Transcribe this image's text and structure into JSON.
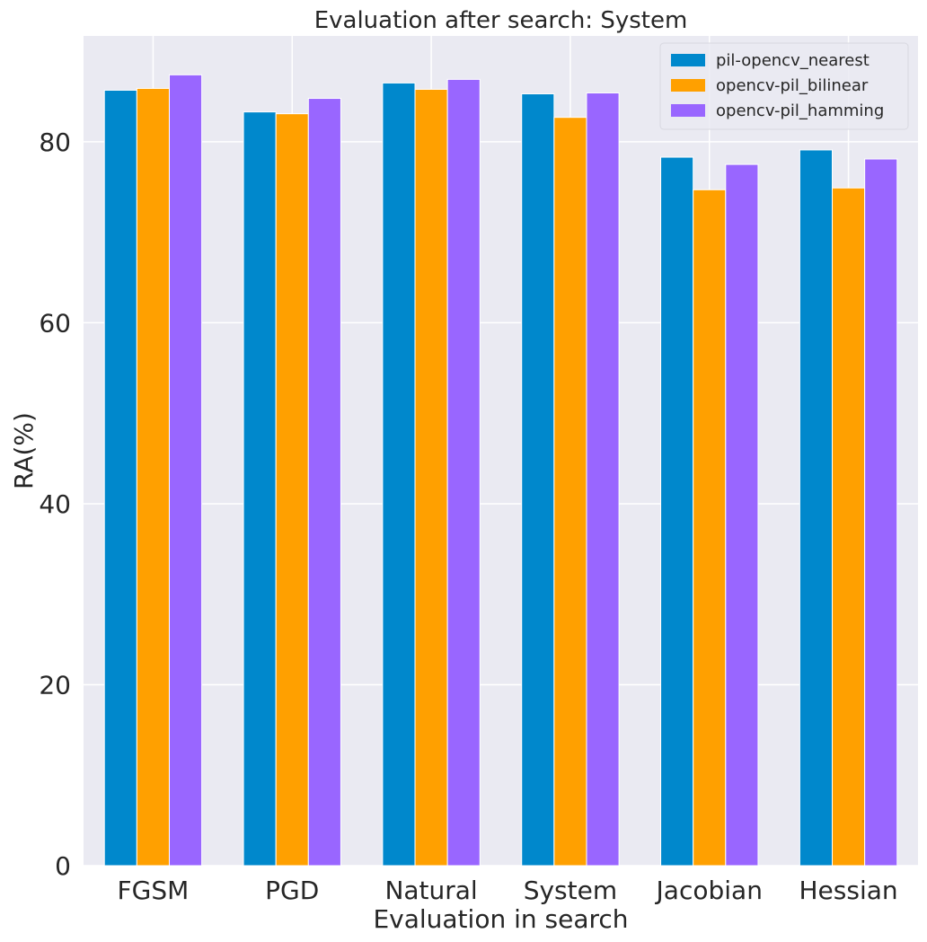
{
  "chart_data": {
    "type": "bar",
    "title": "Evaluation after search: System",
    "xlabel": "Evaluation in search",
    "ylabel": "RA(%)",
    "categories": [
      "FGSM",
      "PGD",
      "Natural",
      "System",
      "Jacobian",
      "Hessian"
    ],
    "series": [
      {
        "name": "pil-opencv_nearest",
        "color": "#0088CC",
        "values": [
          85.7,
          83.3,
          86.5,
          85.3,
          78.3,
          79.1
        ]
      },
      {
        "name": "opencv-pil_bilinear",
        "color": "#FFA000",
        "values": [
          85.9,
          83.1,
          85.8,
          82.7,
          74.7,
          74.9
        ]
      },
      {
        "name": "opencv-pil_hamming",
        "color": "#9966FF",
        "values": [
          87.4,
          84.8,
          86.9,
          85.4,
          77.5,
          78.1
        ]
      }
    ],
    "ylim": [
      0,
      91.7
    ],
    "yticks": [
      0,
      20,
      40,
      60,
      80
    ],
    "grid": true,
    "legend_position": "top-right",
    "background": "#EAEAF2"
  }
}
